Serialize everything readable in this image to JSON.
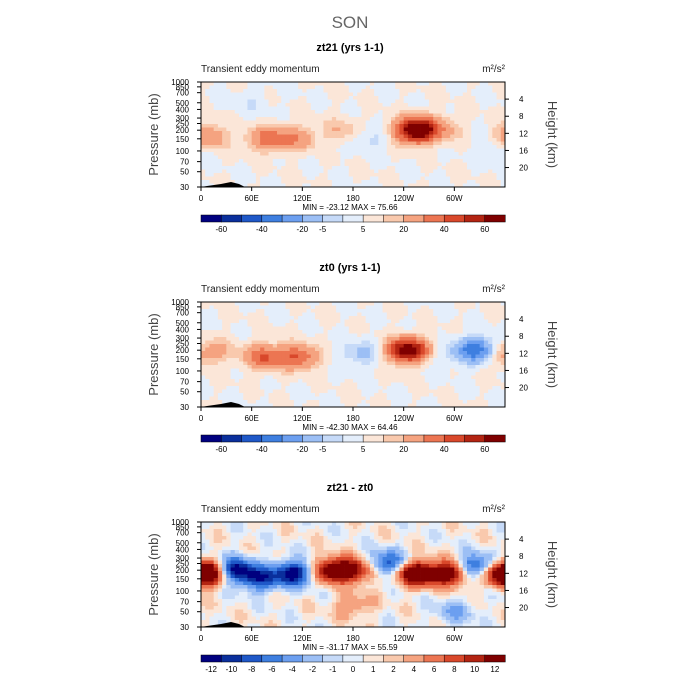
{
  "figure": {
    "title": "SON",
    "left_label": "Transient eddy momentum",
    "units": "m²/s²",
    "ylabel_left": "Pressure (mb)",
    "ylabel_right": "Height (km)"
  },
  "chart_data": [
    {
      "type": "heatmap",
      "title": "zt21 (yrs 1-1)",
      "subtitle": "Transient eddy momentum",
      "units": "m²/s²",
      "xlabel": "",
      "ylabel": "Pressure (mb)",
      "ylabel_right": "Height (km)",
      "x_ticks": [
        "0",
        "60E",
        "120E",
        "180",
        "120W",
        "60W"
      ],
      "x_range_deg": [
        0,
        360
      ],
      "y_ticks_pressure": [
        "30",
        "50",
        "70",
        "100",
        "150",
        "200",
        "250",
        "300",
        "400",
        "500",
        "700",
        "850",
        "1000"
      ],
      "y_ticks_height": [
        "20",
        "16",
        "12",
        "8",
        "4"
      ],
      "ylim_mb": [
        1000,
        30
      ],
      "min_max": "MIN = -23.12   MAX =  75.66",
      "colorbar_labels": [
        "-60",
        "-40",
        "-20",
        "-5",
        "5",
        "20",
        "40",
        "60"
      ],
      "blobs": [
        {
          "lon": 8,
          "p": 160,
          "amp": 22
        },
        {
          "lon": 78,
          "p": 150,
          "amp": 24
        },
        {
          "lon": 112,
          "p": 150,
          "amp": 18
        },
        {
          "lon": 165,
          "p": 200,
          "amp": 10
        },
        {
          "lon": 255,
          "p": 200,
          "amp": 72
        },
        {
          "lon": 285,
          "p": 210,
          "amp": 12
        },
        {
          "lon": 350,
          "p": 120,
          "amp": -8
        },
        {
          "lon": 200,
          "p": 150,
          "amp": -7
        },
        {
          "lon": 60,
          "p": 500,
          "amp": -4
        }
      ]
    },
    {
      "type": "heatmap",
      "title": "zt0 (yrs 1-1)",
      "subtitle": "Transient eddy momentum",
      "units": "m²/s²",
      "xlabel": "",
      "ylabel": "Pressure (mb)",
      "ylabel_right": "Height (km)",
      "x_ticks": [
        "0",
        "60E",
        "120E",
        "180",
        "120W",
        "60W"
      ],
      "x_range_deg": [
        0,
        360
      ],
      "y_ticks_pressure": [
        "30",
        "50",
        "70",
        "100",
        "150",
        "200",
        "250",
        "300",
        "400",
        "500",
        "700",
        "850",
        "1000"
      ],
      "y_ticks_height": [
        "20",
        "16",
        "12",
        "8",
        "4"
      ],
      "ylim_mb": [
        1000,
        30
      ],
      "min_max": "MIN = -42.30   MAX =  64.46",
      "colorbar_labels": [
        "-60",
        "-40",
        "-20",
        "-5",
        "5",
        "20",
        "40",
        "60"
      ],
      "blobs": [
        {
          "lon": 75,
          "p": 160,
          "amp": 30
        },
        {
          "lon": 115,
          "p": 160,
          "amp": 30
        },
        {
          "lon": 20,
          "p": 200,
          "amp": 10
        },
        {
          "lon": 190,
          "p": 180,
          "amp": -12
        },
        {
          "lon": 245,
          "p": 200,
          "amp": 62
        },
        {
          "lon": 325,
          "p": 200,
          "amp": -40
        },
        {
          "lon": 355,
          "p": 170,
          "amp": 12
        },
        {
          "lon": 280,
          "p": 150,
          "amp": -5
        }
      ]
    },
    {
      "type": "heatmap",
      "title": "zt21 - zt0",
      "subtitle": "Transient eddy momentum",
      "units": "m²/s²",
      "xlabel": "",
      "ylabel": "Pressure (mb)",
      "ylabel_right": "Height (km)",
      "x_ticks": [
        "0",
        "60E",
        "120E",
        "180",
        "120W",
        "60W"
      ],
      "x_range_deg": [
        0,
        360
      ],
      "y_ticks_pressure": [
        "30",
        "50",
        "70",
        "100",
        "150",
        "200",
        "250",
        "300",
        "400",
        "500",
        "700",
        "850",
        "1000"
      ],
      "y_ticks_height": [
        "20",
        "16",
        "12",
        "8",
        "4"
      ],
      "ylim_mb": [
        1000,
        30
      ],
      "min_max": "MIN = -31.17   MAX =  55.59",
      "colorbar_labels": [
        "-12",
        "-10",
        "-8",
        "-6",
        "-4",
        "-2",
        "-1",
        "0",
        "1",
        "2",
        "4",
        "6",
        "8",
        "10",
        "12"
      ],
      "blobs": [
        {
          "lon": 10,
          "p": 180,
          "amp": 14
        },
        {
          "lon": 40,
          "p": 200,
          "amp": -14
        },
        {
          "lon": 70,
          "p": 150,
          "amp": -10
        },
        {
          "lon": 110,
          "p": 180,
          "amp": -14
        },
        {
          "lon": 155,
          "p": 200,
          "amp": 14
        },
        {
          "lon": 185,
          "p": 200,
          "amp": 10
        },
        {
          "lon": 220,
          "p": 250,
          "amp": -10
        },
        {
          "lon": 255,
          "p": 180,
          "amp": 16
        },
        {
          "lon": 295,
          "p": 180,
          "amp": 14
        },
        {
          "lon": 325,
          "p": 220,
          "amp": -12
        },
        {
          "lon": 352,
          "p": 180,
          "amp": 10
        },
        {
          "lon": 180,
          "p": 60,
          "amp": 4
        },
        {
          "lon": 300,
          "p": 50,
          "amp": -4
        }
      ]
    }
  ],
  "colors": {
    "scale": [
      "#00007f",
      "#0a2f9c",
      "#1f58c8",
      "#3e7fe0",
      "#6c9ff0",
      "#9cbff5",
      "#c6daf8",
      "#e4eefb",
      "#fbe6d8",
      "#f9c9ad",
      "#f5a380",
      "#ec7552",
      "#d9482b",
      "#b32412",
      "#7f0000"
    ]
  }
}
